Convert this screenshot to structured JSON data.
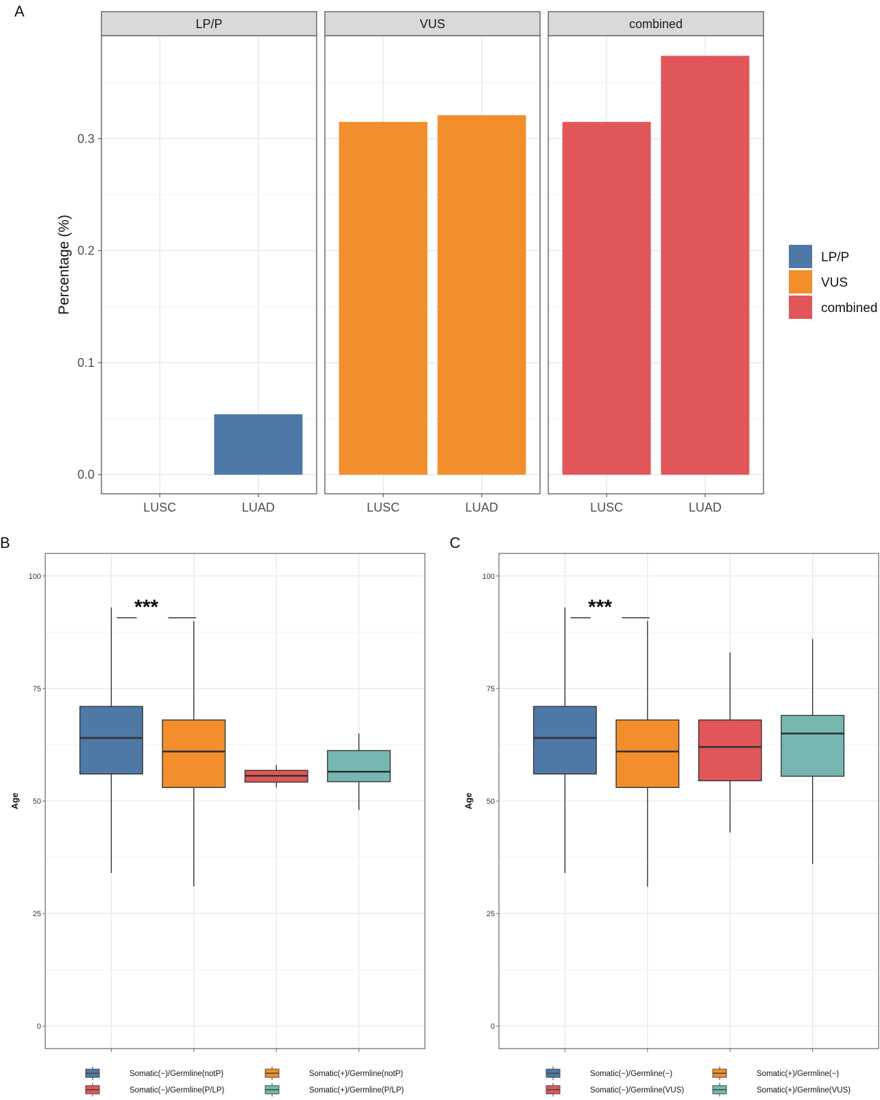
{
  "chart_data": [
    {
      "panel_label": "A",
      "type": "bar",
      "facets": [
        "LP/P",
        "VUS",
        "combined"
      ],
      "categories": [
        "LUSC",
        "LUAD"
      ],
      "series": [
        {
          "name": "LP/P",
          "values": [
            0,
            0.054
          ]
        },
        {
          "name": "VUS",
          "values": [
            0.315,
            0.321
          ]
        },
        {
          "name": "combined",
          "values": [
            0.315,
            0.374
          ]
        }
      ],
      "colors": [
        "#4e79a7",
        "#f28e2b",
        "#e15759"
      ],
      "ylabel": "Percentage (%)",
      "xlabel": "",
      "ylim": [
        -0.017,
        0.392
      ],
      "yticks": [
        0.0,
        0.1,
        0.2,
        0.3
      ],
      "ytick_labels": [
        "0.0",
        "0.1",
        "0.2",
        "0.3"
      ],
      "legend": {
        "placement": "right",
        "entries": [
          "LP/P",
          "VUS",
          "combined"
        ]
      }
    },
    {
      "panel_label": "B",
      "type": "box",
      "ylabel": "Age",
      "ylim": [
        -5,
        105
      ],
      "yticks": [
        0,
        25,
        50,
        75,
        100
      ],
      "ytick_labels": [
        "0",
        "25",
        "50",
        "75",
        "100"
      ],
      "series": [
        {
          "name": "Somatic(−)/Germline(notP)",
          "color": "#4e79a7",
          "whisker_low": 34,
          "q1": 56,
          "median": 64,
          "q3": 71,
          "whisker_high": 93
        },
        {
          "name": "Somatic(+)/Germline(notP)",
          "color": "#f28e2b",
          "whisker_low": 31,
          "q1": 53,
          "median": 61,
          "q3": 68,
          "whisker_high": 90
        },
        {
          "name": "Somatic(−)/Germline(P/LP)",
          "color": "#e15759",
          "whisker_low": 53,
          "q1": 54.2,
          "median": 55.6,
          "q3": 56.8,
          "whisker_high": 58
        },
        {
          "name": "Somatic(+)/Germline(P/LP)",
          "color": "#76b7b2",
          "whisker_low": 48,
          "q1": 54.3,
          "median": 56.5,
          "q3": 61.2,
          "whisker_high": 65
        }
      ],
      "annotation": {
        "text": "***",
        "between": [
          0,
          1
        ],
        "y": 90.7
      },
      "legend": {
        "placement": "bottom"
      }
    },
    {
      "panel_label": "C",
      "type": "box",
      "ylabel": "Age",
      "ylim": [
        -5,
        105
      ],
      "yticks": [
        0,
        25,
        50,
        75,
        100
      ],
      "ytick_labels": [
        "0",
        "25",
        "50",
        "75",
        "100"
      ],
      "series": [
        {
          "name": "Somatic(−)/Germline(−)",
          "color": "#4e79a7",
          "whisker_low": 34,
          "q1": 56,
          "median": 64,
          "q3": 71,
          "whisker_high": 93
        },
        {
          "name": "Somatic(+)/Germline(−)",
          "color": "#f28e2b",
          "whisker_low": 31,
          "q1": 53,
          "median": 61,
          "q3": 68,
          "whisker_high": 90
        },
        {
          "name": "Somatic(−)/Germline(VUS)",
          "color": "#e15759",
          "whisker_low": 43,
          "q1": 54.5,
          "median": 62,
          "q3": 68,
          "whisker_high": 83
        },
        {
          "name": "Somatic(+)/Germline(VUS)",
          "color": "#76b7b2",
          "whisker_low": 36,
          "q1": 55.5,
          "median": 65,
          "q3": 69,
          "whisker_high": 86
        }
      ],
      "annotation": {
        "text": "***",
        "between": [
          0,
          1
        ],
        "y": 90.7
      },
      "legend": {
        "placement": "bottom"
      }
    }
  ]
}
